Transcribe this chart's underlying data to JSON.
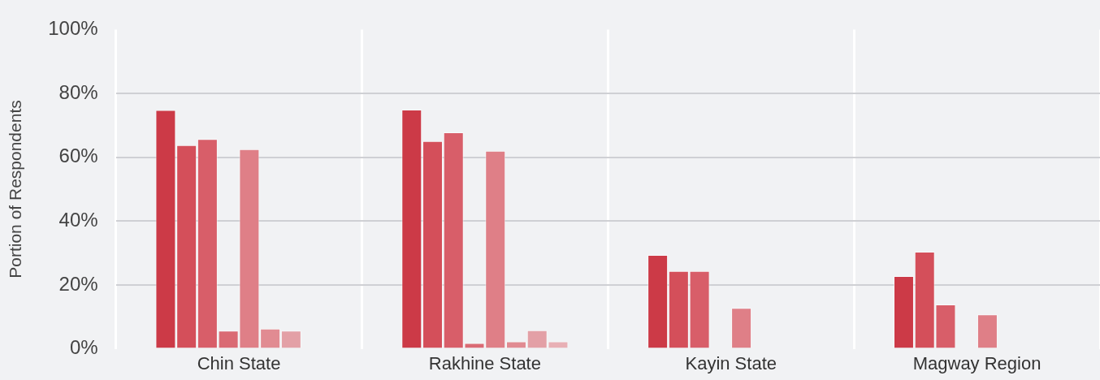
{
  "chart_data": {
    "type": "bar",
    "ylabel": "Portion of Respondents",
    "categories": [
      "Chin State",
      "Rakhine State",
      "Kayin State",
      "Magway Region"
    ],
    "series": [
      {
        "color": "#cc3a47",
        "values": [
          74.8,
          74.9,
          29.4,
          22.8
        ]
      },
      {
        "color": "#d44f5a",
        "values": [
          63.8,
          65.1,
          24.4,
          30.4
        ]
      },
      {
        "color": "#d85e69",
        "values": [
          65.7,
          67.8,
          24.4,
          13.9
        ]
      },
      {
        "color": "#da6a74",
        "values": [
          5.7,
          1.8,
          null,
          null
        ]
      },
      {
        "color": "#df7f87",
        "values": [
          62.5,
          62.0,
          12.8,
          10.8
        ]
      },
      {
        "color": "#e18b92",
        "values": [
          6.3,
          2.3,
          null,
          null
        ]
      },
      {
        "color": "#e3a0a6",
        "values": [
          5.7,
          5.8,
          null,
          null
        ]
      },
      {
        "color": "#e8b0b5",
        "values": [
          null,
          2.3,
          null,
          null
        ]
      }
    ],
    "ylim": [
      0,
      100
    ],
    "yticks": [
      {
        "value": 0,
        "label": "0%"
      },
      {
        "value": 20,
        "label": "20%"
      },
      {
        "value": 40,
        "label": "40%"
      },
      {
        "value": 60,
        "label": "60%"
      },
      {
        "value": 80,
        "label": "80%"
      },
      {
        "value": 100,
        "label": "100%"
      }
    ],
    "grid": true,
    "legend": false
  }
}
